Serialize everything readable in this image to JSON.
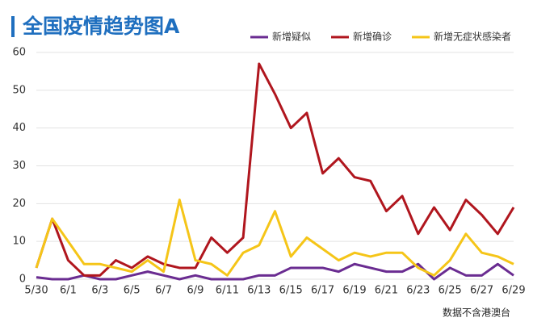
{
  "chart_data": {
    "type": "line",
    "title": "全国疫情趋势图A",
    "note": "数据不含港澳台",
    "categories": [
      "5/30",
      null,
      "6/1",
      null,
      "6/3",
      null,
      "6/5",
      null,
      "6/7",
      null,
      "6/9",
      null,
      "6/11",
      null,
      "6/13",
      null,
      "6/15",
      null,
      "6/17",
      null,
      "6/19",
      null,
      "6/21",
      null,
      "6/23",
      null,
      "6/25",
      null,
      "6/27",
      null,
      "6/29"
    ],
    "series": [
      {
        "name": "新增疑似",
        "color": "#6a2c91",
        "values": [
          0.5,
          0,
          0,
          1,
          0,
          0,
          1,
          2,
          1,
          0,
          1,
          0,
          0,
          0,
          1,
          1,
          3,
          3,
          3,
          2,
          4,
          3,
          2,
          2,
          4,
          0,
          3,
          1,
          1,
          4,
          1
        ]
      },
      {
        "name": "新增确诊",
        "color": "#b0161e",
        "values": [
          3,
          16,
          5,
          1,
          1,
          5,
          3,
          6,
          4,
          3,
          3,
          11,
          7,
          11,
          57,
          49,
          40,
          44,
          28,
          32,
          27,
          26,
          18,
          22,
          12,
          19,
          13,
          21,
          17,
          12,
          19
        ]
      },
      {
        "name": "新增无症状感染者",
        "color": "#f5c518",
        "values": [
          3,
          16,
          10,
          4,
          4,
          3,
          2,
          5,
          2,
          21,
          5,
          4,
          1,
          7,
          9,
          18,
          6,
          11,
          8,
          5,
          7,
          6,
          7,
          7,
          3,
          1,
          5,
          12,
          7,
          6,
          4
        ]
      }
    ],
    "ylim": [
      0,
      60
    ],
    "yticks": [
      0,
      10,
      20,
      30,
      40,
      50,
      60
    ],
    "grid": true
  }
}
